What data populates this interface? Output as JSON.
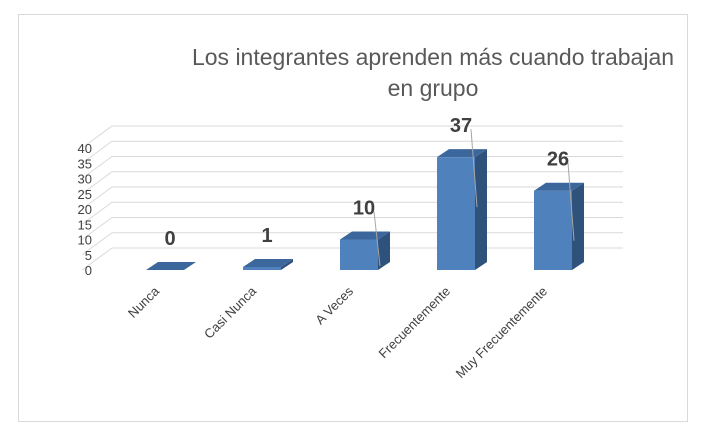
{
  "chart_data": {
    "type": "bar",
    "title_lines": [
      "Los integrantes aprenden más cuando trabajan",
      "en grupo"
    ],
    "categories": [
      "Nunca",
      "Casi Nunca",
      "A Veces",
      "Frecuentemente",
      "Muy Frecuentemente"
    ],
    "values": [
      0,
      1,
      10,
      37,
      26
    ],
    "ylim": [
      0,
      40
    ],
    "yticks": [
      "0",
      "5",
      "10",
      "15",
      "20",
      "25",
      "30",
      "35",
      "40"
    ],
    "grid": true,
    "legend": "none",
    "bar_style": "3d-column"
  },
  "colors": {
    "bar_front": "#4f81bd",
    "bar_side": "#2f527c",
    "bar_top": "#3c679c",
    "grid": "#d9d9d9",
    "text": "#404040",
    "title": "#595959"
  }
}
